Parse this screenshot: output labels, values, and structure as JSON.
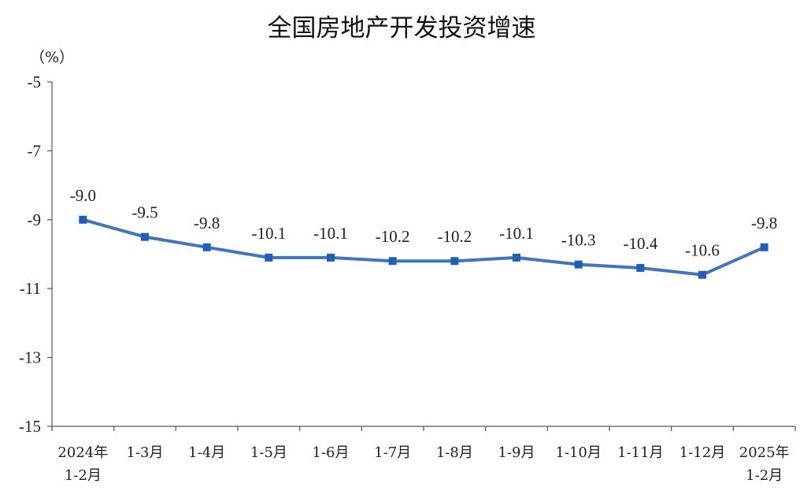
{
  "chart_data": {
    "type": "line",
    "title": "全国房地产开发投资增速",
    "unit_label": "（%）",
    "categories": [
      [
        "2024年",
        "1-2月"
      ],
      [
        "1-3月"
      ],
      [
        "1-4月"
      ],
      [
        "1-5月"
      ],
      [
        "1-6月"
      ],
      [
        "1-7月"
      ],
      [
        "1-8月"
      ],
      [
        "1-9月"
      ],
      [
        "1-10月"
      ],
      [
        "1-11月"
      ],
      [
        "1-12月"
      ],
      [
        "2025年",
        "1-2月"
      ]
    ],
    "values": [
      -9.0,
      -9.5,
      -9.8,
      -10.1,
      -10.1,
      -10.2,
      -10.2,
      -10.1,
      -10.3,
      -10.4,
      -10.6,
      -9.8
    ],
    "data_labels": [
      "-9.0",
      "-9.5",
      "-9.8",
      "-10.1",
      "-10.1",
      "-10.2",
      "-10.2",
      "-10.1",
      "-10.3",
      "-10.4",
      "-10.6",
      "-9.8"
    ],
    "ylim": [
      -15,
      -5
    ],
    "yticks": [
      -5,
      -7,
      -9,
      -11,
      -13,
      -15
    ],
    "ytick_labels": [
      "-5",
      "-7",
      "-9",
      "-11",
      "-13",
      "-15"
    ],
    "grid": false,
    "legend": "none",
    "colors": {
      "line": "#3f74bf",
      "marker": "#1f5fb8"
    }
  }
}
